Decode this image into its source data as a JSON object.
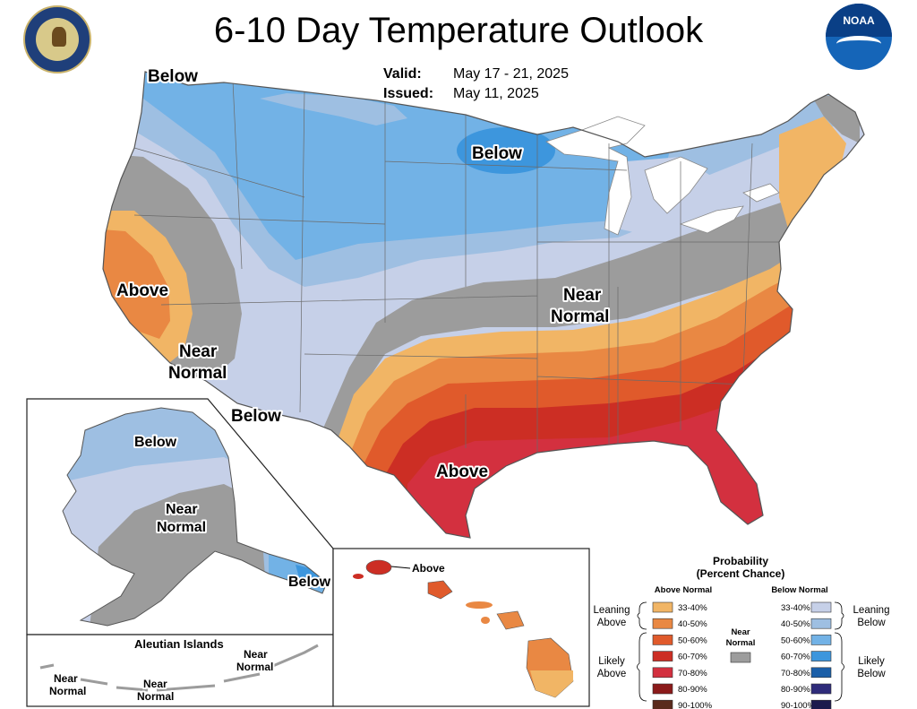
{
  "title": "6-10 Day Temperature Outlook",
  "valid_label": "Valid:",
  "valid_value": "May 17 - 21, 2025",
  "issued_label": "Issued:",
  "issued_value": "May 11, 2025",
  "colors": {
    "above_33_40": "#f1b565",
    "above_40_50": "#e98843",
    "above_50_60": "#e05a2b",
    "above_60_70": "#cc2e24",
    "above_70_80": "#d3303f",
    "above_80_90": "#8b1a1a",
    "above_90_100": "#5a2a1c",
    "below_33_40": "#c6d0e8",
    "below_40_50": "#9ebfe2",
    "below_50_60": "#72b2e6",
    "below_60_70": "#3d96dd",
    "below_70_80": "#1a5fa8",
    "below_80_90": "#2e2b7a",
    "below_90_100": "#1c1a4d",
    "near_normal": "#9c9c9c",
    "water": "#ffffff",
    "border": "#666666"
  },
  "map_labels": {
    "conus_below_nw": "Below",
    "conus_below_mn": "Below",
    "conus_above_ca": "Above",
    "conus_near_west": "Near\nNormal",
    "conus_near_west_1": "Near",
    "conus_near_west_2": "Normal",
    "conus_below_sw": "Below",
    "conus_near_ohio_1": "Near",
    "conus_near_ohio_2": "Normal",
    "conus_above_tx": "Above",
    "ak_below": "Below",
    "ak_near_1": "Near",
    "ak_near_2": "Normal",
    "ak_below_se": "Below",
    "aleutian_title": "Aleutian Islands",
    "aleutian_near_1": "Near",
    "aleutian_near_2": "Normal",
    "hi_above": "Above"
  },
  "legend": {
    "title_1": "Probability",
    "title_2": "(Percent Chance)",
    "above_header": "Above Normal",
    "below_header": "Below Normal",
    "leaning_above_1": "Leaning",
    "leaning_above_2": "Above",
    "likely_above_1": "Likely",
    "likely_above_2": "Above",
    "leaning_below_1": "Leaning",
    "leaning_below_2": "Below",
    "likely_below_1": "Likely",
    "likely_below_2": "Below",
    "near_normal_1": "Near",
    "near_normal_2": "Normal",
    "ranges": [
      "33-40%",
      "40-50%",
      "50-60%",
      "60-70%",
      "70-80%",
      "80-90%",
      "90-100%"
    ]
  }
}
